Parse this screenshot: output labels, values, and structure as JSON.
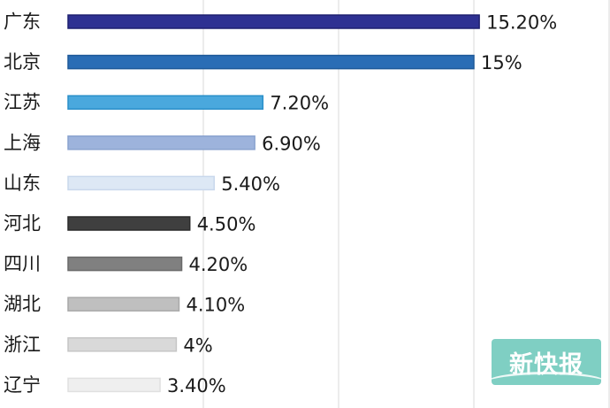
{
  "chart_data": {
    "type": "bar",
    "orientation": "horizontal",
    "categories": [
      "广东",
      "北京",
      "江苏",
      "上海",
      "山东",
      "河北",
      "四川",
      "湖北",
      "浙江",
      "辽宁"
    ],
    "values": [
      15.2,
      15,
      7.2,
      6.9,
      5.4,
      4.5,
      4.2,
      4.1,
      4,
      3.4
    ],
    "value_labels": [
      "15.20%",
      "15%",
      "7.20%",
      "6.90%",
      "5.40%",
      "4.50%",
      "4.20%",
      "4.10%",
      "4%",
      "3.40%"
    ],
    "bar_colors": [
      "#2e3192",
      "#2a6db5",
      "#4aa8dd",
      "#9db3dc",
      "#dde8f5",
      "#3f3f3f",
      "#808080",
      "#bfbfbf",
      "#d9d9d9",
      "#efefef"
    ],
    "bar_edge_colors": [
      "#1f2170",
      "#1f5a99",
      "#2a8fc9",
      "#8aa3cf",
      "#c9d8ec",
      "#2a2a2a",
      "#6a6a6a",
      "#a9a9a9",
      "#c6c6c6",
      "#e0e0e0"
    ],
    "xlim": [
      0,
      20
    ],
    "grid": true,
    "legend": "none"
  },
  "watermark": {
    "text": "新快报",
    "color": "#7fcfc3"
  }
}
